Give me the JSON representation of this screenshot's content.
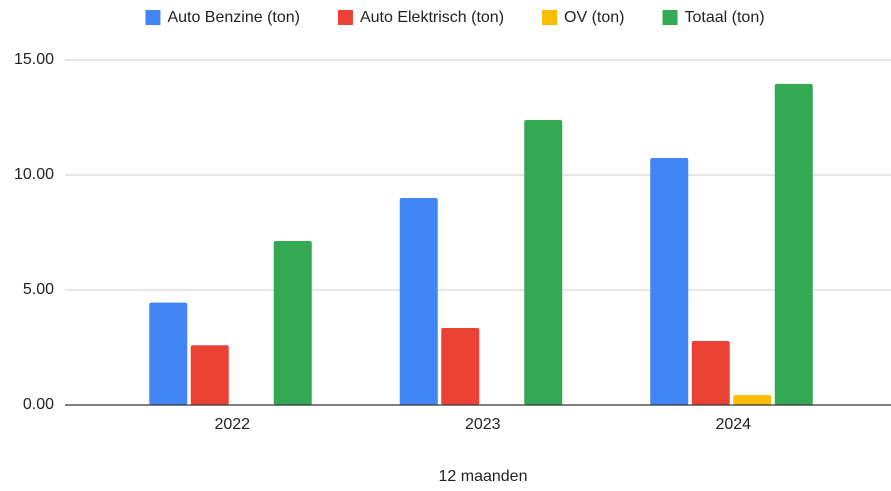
{
  "chart_data": {
    "type": "bar",
    "x_label": "12 maanden",
    "categories": [
      "2022",
      "2023",
      "2024"
    ],
    "series": [
      {
        "name": "Auto Benzine (ton)",
        "color": "#4285f4",
        "values": [
          4.45,
          9.0,
          10.74
        ]
      },
      {
        "name": "Auto Elektrisch (ton)",
        "color": "#ea4335",
        "values": [
          2.6,
          3.35,
          2.78
        ]
      },
      {
        "name": "OV (ton)",
        "color": "#fbbc04",
        "values": [
          0,
          0,
          0.43
        ]
      },
      {
        "name": "Totaal (ton)",
        "color": "#34a853",
        "values": [
          7.13,
          12.39,
          13.96
        ]
      }
    ],
    "ylim": [
      0,
      15
    ],
    "yticks": [
      {
        "value": 0,
        "label": "0.00"
      },
      {
        "value": 5,
        "label": "5.00"
      },
      {
        "value": 10,
        "label": "10.00"
      },
      {
        "value": 15,
        "label": "15.00"
      }
    ],
    "grid": true,
    "legend": "top"
  }
}
